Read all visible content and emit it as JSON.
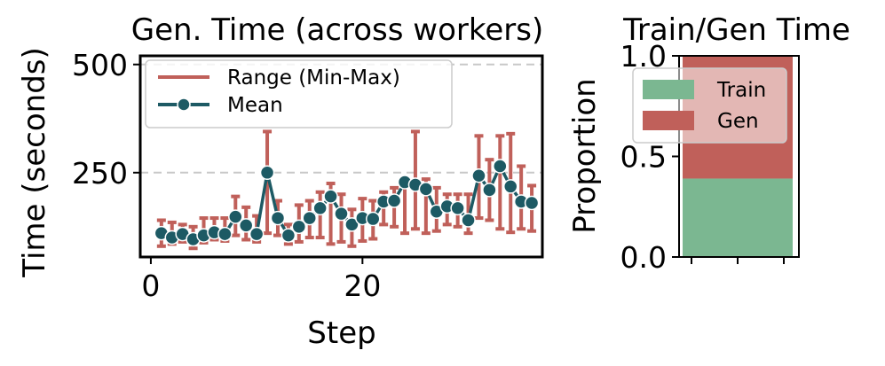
{
  "chart_data": [
    {
      "type": "line",
      "title": "Gen. Time (across workers)",
      "xlabel": "Step",
      "ylabel": "Time (seconds)",
      "xlim": [
        -1,
        37
      ],
      "ylim": [
        55,
        520
      ],
      "xticks": [
        0,
        20
      ],
      "yticks": [
        250,
        500
      ],
      "grid_y": [
        250,
        500
      ],
      "legend_position": "top-left",
      "series": [
        {
          "name": "Range (Min-Max)",
          "kind": "errorbar",
          "color": "#c0605a",
          "x": [
            1,
            2,
            3,
            4,
            5,
            6,
            7,
            8,
            9,
            10,
            11,
            12,
            13,
            14,
            15,
            16,
            17,
            18,
            19,
            20,
            21,
            22,
            23,
            24,
            25,
            26,
            27,
            28,
            29,
            30,
            31,
            32,
            33,
            34,
            35,
            36
          ],
          "low": [
            80,
            85,
            90,
            75,
            88,
            95,
            92,
            105,
            95,
            90,
            110,
            105,
            85,
            90,
            100,
            100,
            85,
            90,
            80,
            92,
            97,
            130,
            125,
            110,
            120,
            110,
            115,
            130,
            125,
            110,
            145,
            140,
            120,
            112,
            120,
            115
          ],
          "high": [
            140,
            135,
            130,
            125,
            145,
            145,
            145,
            195,
            170,
            150,
            345,
            185,
            130,
            175,
            185,
            205,
            225,
            200,
            165,
            190,
            185,
            205,
            215,
            235,
            345,
            235,
            215,
            200,
            200,
            200,
            335,
            280,
            335,
            340,
            265,
            220
          ]
        },
        {
          "name": "Mean",
          "kind": "line-marker",
          "color": "#1d5a64",
          "x": [
            1,
            2,
            3,
            4,
            5,
            6,
            7,
            8,
            9,
            10,
            11,
            12,
            13,
            14,
            15,
            16,
            17,
            18,
            19,
            20,
            21,
            22,
            23,
            24,
            25,
            26,
            27,
            28,
            29,
            30,
            31,
            32,
            33,
            34,
            35,
            36
          ],
          "values": [
            110,
            100,
            108,
            96,
            105,
            112,
            108,
            148,
            128,
            108,
            250,
            145,
            105,
            125,
            145,
            168,
            195,
            155,
            130,
            145,
            143,
            183,
            185,
            228,
            222,
            212,
            160,
            172,
            168,
            140,
            243,
            210,
            265,
            218,
            183,
            180
          ]
        }
      ]
    },
    {
      "type": "bar",
      "stacked": true,
      "title": "Train/Gen Time",
      "xlabel": "",
      "ylabel": "Proportion",
      "ylim": [
        0,
        1.0
      ],
      "yticks": [
        "0.0",
        "0.5",
        "1.0"
      ],
      "legend_position": "top-left",
      "series": [
        {
          "name": "Train",
          "color": "#7bb791",
          "value": 0.39
        },
        {
          "name": "Gen",
          "color": "#c0605a",
          "value": 0.61
        }
      ]
    }
  ]
}
